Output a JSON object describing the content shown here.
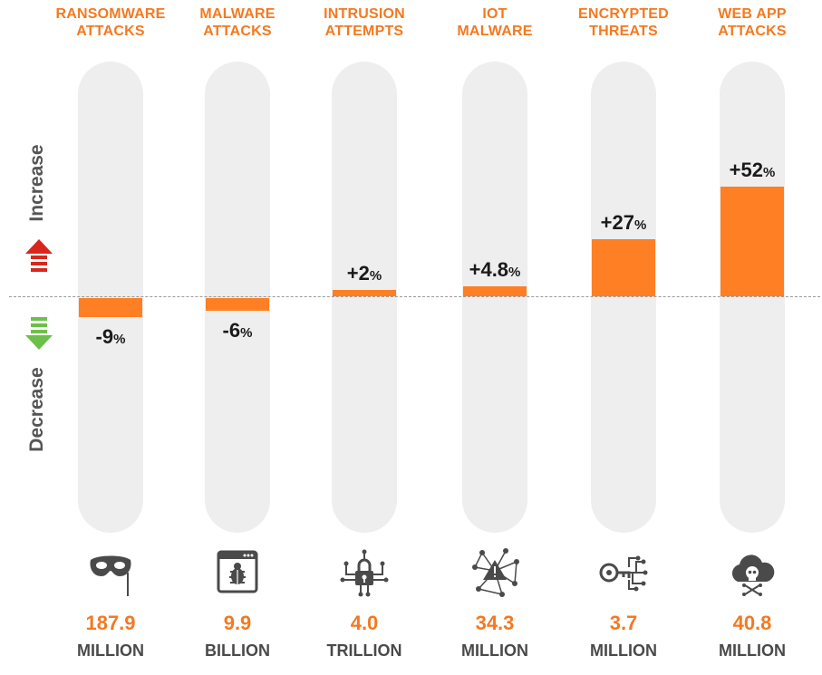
{
  "chart_data": {
    "type": "bar",
    "categories": [
      "RANSOMWARE\nATTACKS",
      "MALWARE\nATTACKS",
      "INTRUSION\nATTEMPTS",
      "IOT\nMALWARE",
      "ENCRYPTED\nTHREATS",
      "WEB APP\nATTACKS"
    ],
    "values": [
      -9,
      -6,
      2,
      4.8,
      27,
      52
    ],
    "value_labels": [
      "-9",
      "-6",
      "+2",
      "+4.8",
      "+27",
      "+52"
    ],
    "value_unit": "%",
    "totals": [
      "187.9",
      "9.9",
      "4.0",
      "34.3",
      "3.7",
      "40.8"
    ],
    "total_units": [
      "MILLION",
      "BILLION",
      "TRILLION",
      "MILLION",
      "MILLION",
      "MILLION"
    ],
    "icons": [
      "mask-icon",
      "bug-window-icon",
      "lock-circuit-icon",
      "iot-network-warning-icon",
      "key-circuit-icon",
      "cloud-skull-icon"
    ],
    "axis_labels": {
      "up": "Increase",
      "down": "Decrease"
    },
    "ylim": [
      -52,
      52
    ],
    "baseline": 0,
    "colors": {
      "bar": "#ff7f24",
      "title": "#f47920",
      "track": "#eeeeee",
      "up_arrow": "#d9261c",
      "down_arrow": "#6cc04a",
      "icon": "#4a4a4a"
    }
  }
}
